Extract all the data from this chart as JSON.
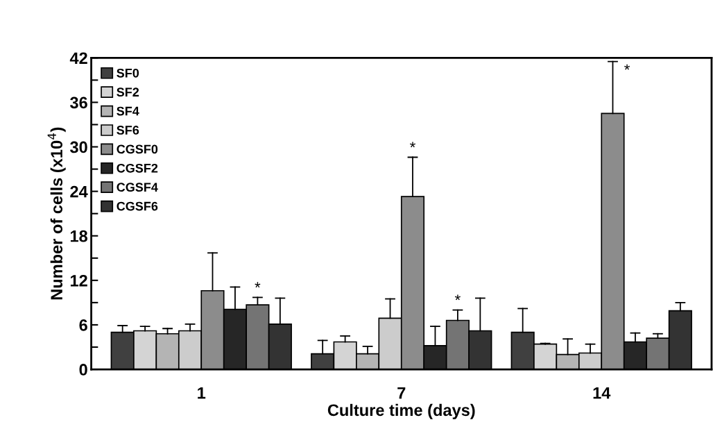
{
  "chart_data": {
    "type": "bar",
    "xlabel": "Culture time (days)",
    "ylabel": "Number of cells (x10$^{4}$)",
    "categories": [
      "1",
      "7",
      "14"
    ],
    "series": [
      {
        "name": "SF0",
        "color": "#404040",
        "values": [
          5.0,
          2.1,
          5.0
        ],
        "errors": [
          [
            5.0,
            5.9
          ],
          [
            2.1,
            3.9
          ],
          [
            5.0,
            8.2
          ]
        ]
      },
      {
        "name": "SF2",
        "color": "#d4d4d4",
        "values": [
          5.2,
          3.7,
          3.4
        ],
        "errors": [
          [
            5.2,
            5.8
          ],
          [
            3.7,
            4.5
          ],
          [
            3.4,
            3.5
          ]
        ]
      },
      {
        "name": "SF4",
        "color": "#b4b4b4",
        "values": [
          4.8,
          2.1,
          2.0
        ],
        "errors": [
          [
            4.8,
            5.5
          ],
          [
            2.1,
            3.1
          ],
          [
            2.0,
            4.1
          ]
        ]
      },
      {
        "name": "SF6",
        "color": "#cccccc",
        "values": [
          5.2,
          6.9,
          2.2
        ],
        "errors": [
          [
            5.2,
            6.1
          ],
          [
            6.9,
            9.5
          ],
          [
            2.2,
            3.4
          ]
        ]
      },
      {
        "name": "CGSF0",
        "color": "#8c8c8c",
        "values": [
          10.6,
          23.3,
          34.5
        ],
        "errors": [
          [
            10.6,
            15.7
          ],
          [
            23.3,
            28.6
          ],
          [
            34.5,
            41.5
          ]
        ]
      },
      {
        "name": "CGSF2",
        "color": "#262626",
        "values": [
          8.1,
          3.2,
          3.7
        ],
        "errors": [
          [
            8.1,
            11.1
          ],
          [
            3.2,
            5.8
          ],
          [
            3.7,
            4.9
          ]
        ]
      },
      {
        "name": "CGSF4",
        "color": "#747474",
        "values": [
          8.7,
          6.6,
          4.2
        ],
        "errors": [
          [
            8.7,
            9.7
          ],
          [
            6.6,
            8.0
          ],
          [
            4.2,
            4.8
          ]
        ]
      },
      {
        "name": "CGSF6",
        "color": "#333333",
        "values": [
          6.1,
          5.2,
          7.9
        ],
        "errors": [
          [
            6.1,
            9.6
          ],
          [
            5.2,
            9.6
          ],
          [
            7.9,
            9.0
          ]
        ]
      }
    ],
    "ylim": [
      0,
      42
    ],
    "yticks": [
      0,
      {
        "value": 3,
        "label": null
      },
      6,
      {
        "value": 9,
        "label": null
      },
      12,
      {
        "value": 15,
        "label": null
      },
      18,
      {
        "value": 21,
        "label": null
      },
      24,
      {
        "value": 27,
        "label": null
      },
      30,
      {
        "value": 33,
        "label": null
      },
      36,
      {
        "value": 39,
        "label": null
      },
      42
    ],
    "annotations": [
      "*",
      "*",
      "*",
      "*"
    ],
    "legend": "top left",
    "grid": false
  }
}
